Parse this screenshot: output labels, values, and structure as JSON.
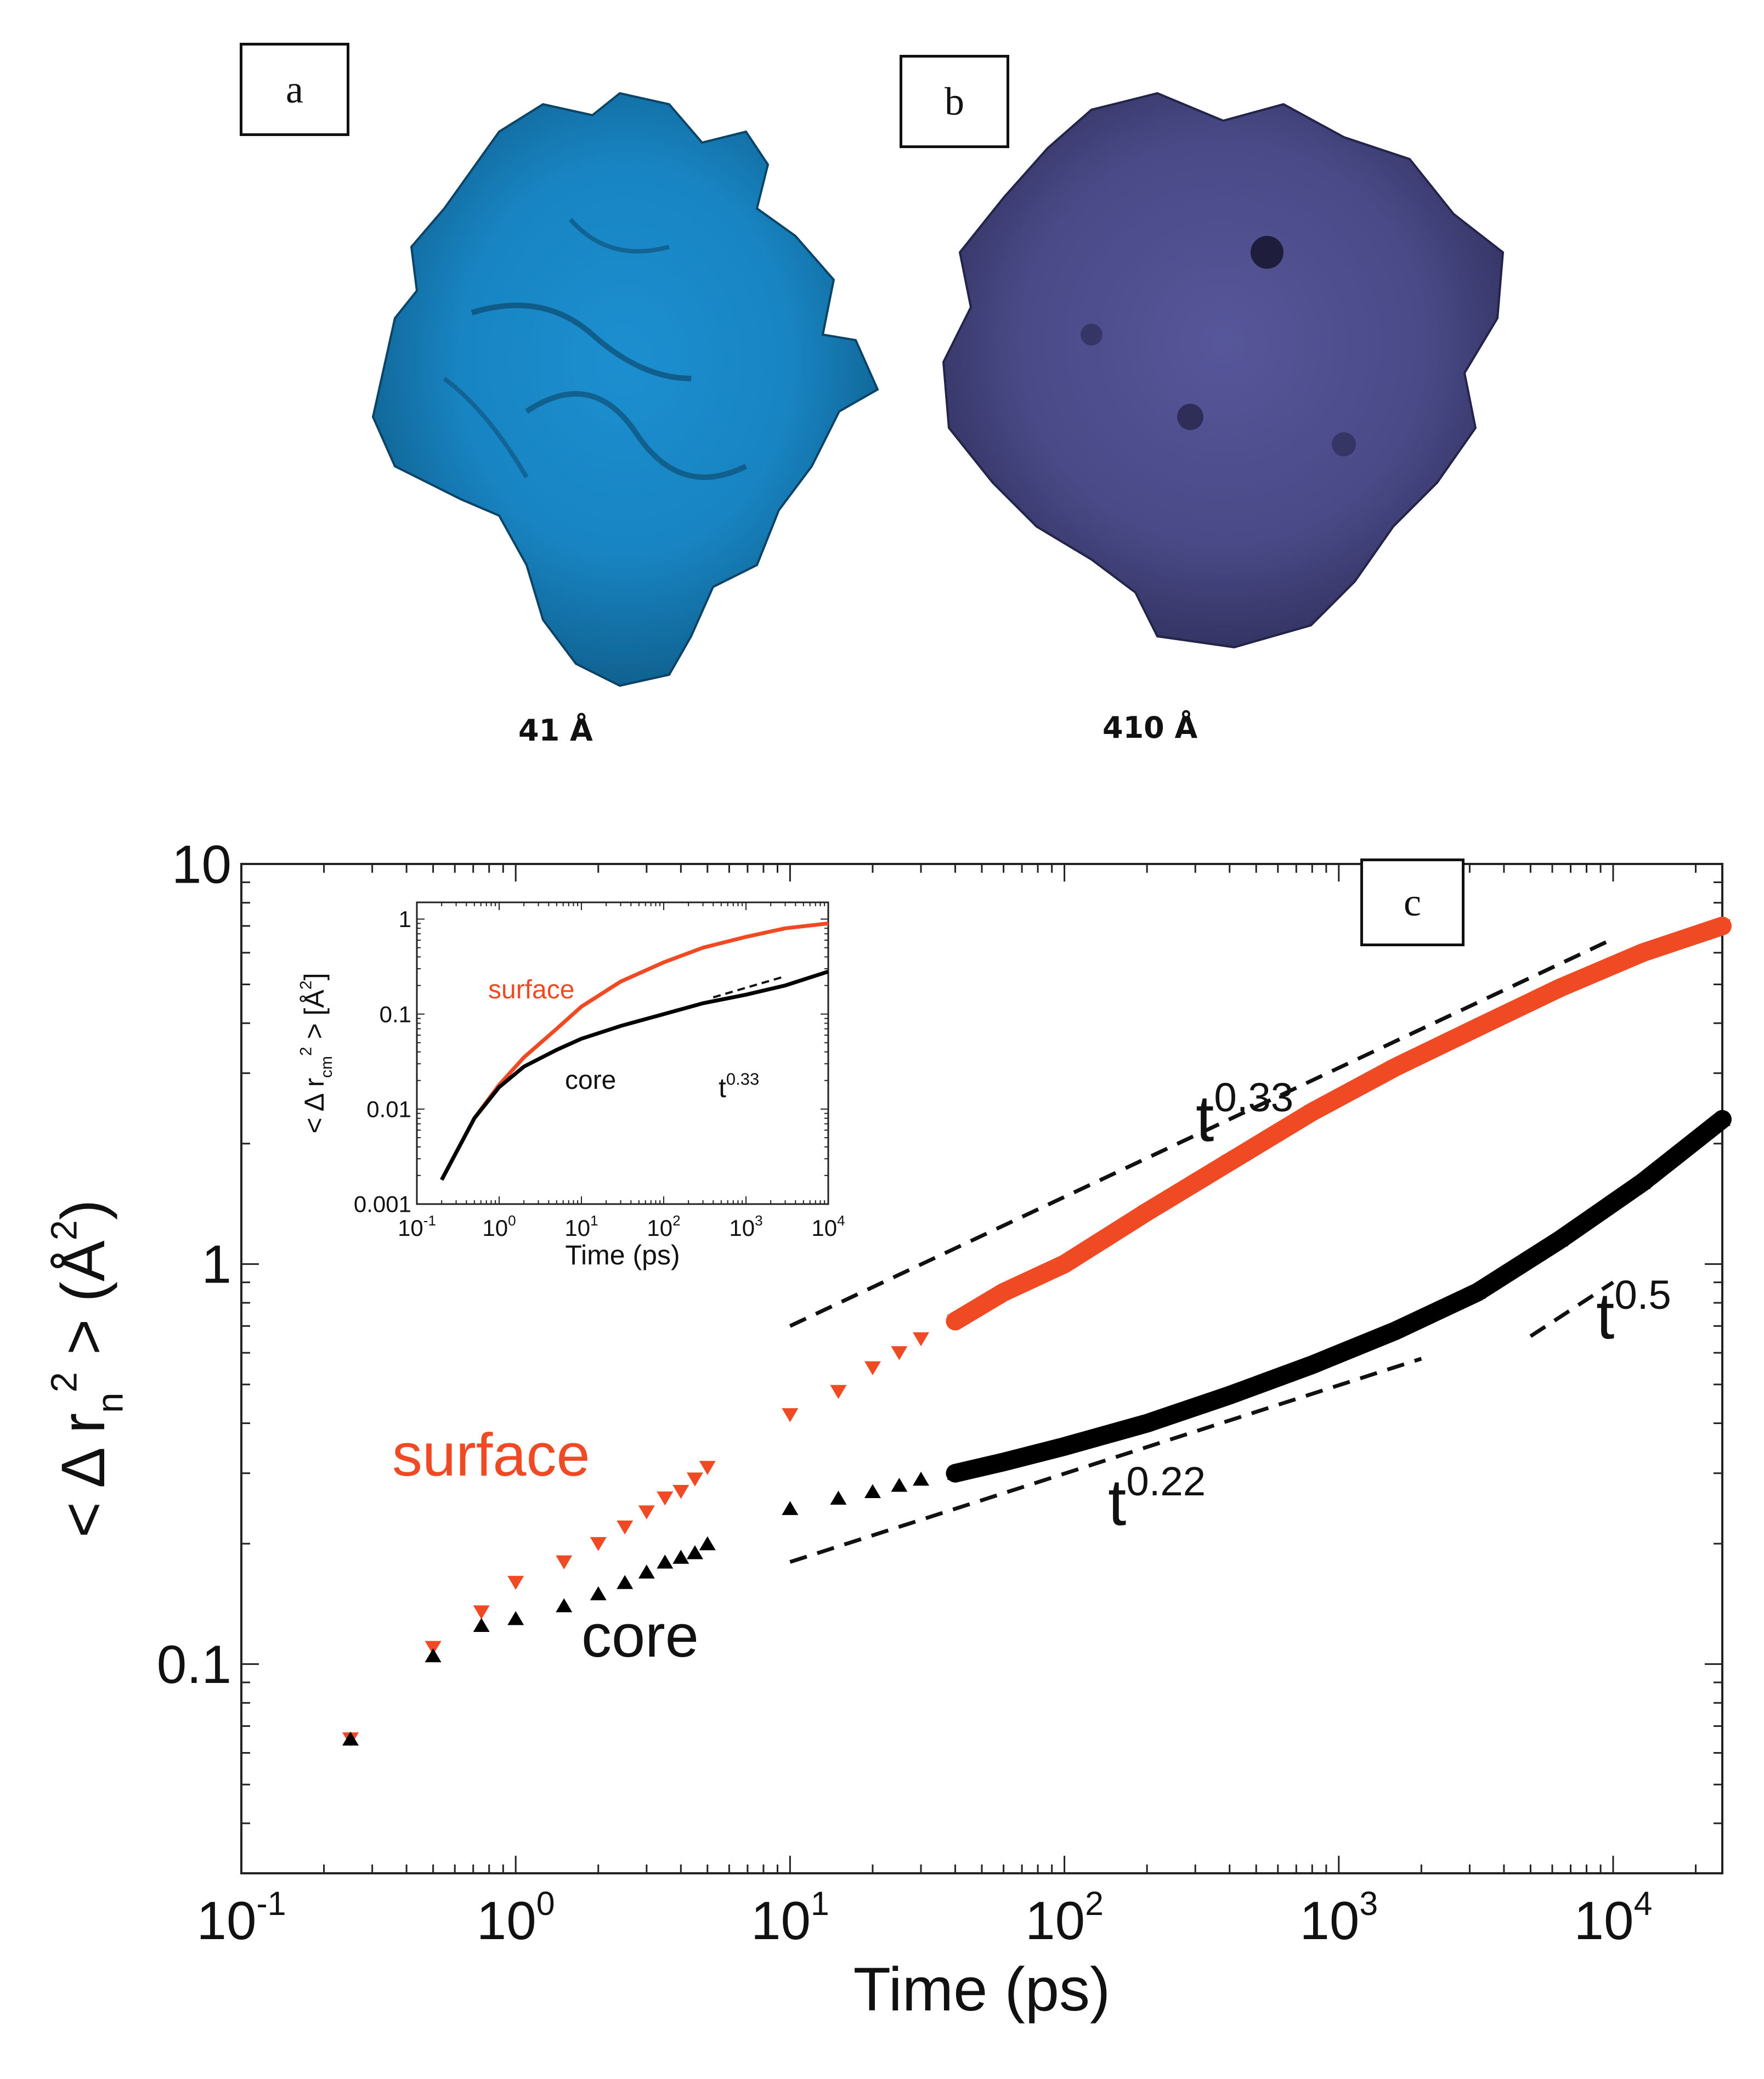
{
  "panels": {
    "a": {
      "label": "a",
      "caption": "41  Å",
      "surface_color": "#1c8fd0"
    },
    "b": {
      "label": "b",
      "caption": "410  Å",
      "surface_color": "#4a4a88"
    },
    "c": {
      "label": "c"
    }
  },
  "chart_data": [
    {
      "type": "scatter",
      "name": "main",
      "xscale": "log",
      "yscale": "log",
      "xlim": [
        0.1,
        25000
      ],
      "ylim": [
        0.03,
        10
      ],
      "xlabel": "Time  (ps)",
      "ylabel": "< Δ r_n^2 > (Å^2)",
      "xticks": [
        {
          "v": 0.1,
          "b": "10",
          "e": "-1"
        },
        {
          "v": 1,
          "b": "10",
          "e": "0"
        },
        {
          "v": 10,
          "b": "10",
          "e": "1"
        },
        {
          "v": 100,
          "b": "10",
          "e": "2"
        },
        {
          "v": 1000,
          "b": "10",
          "e": "3"
        },
        {
          "v": 10000,
          "b": "10",
          "e": "4"
        }
      ],
      "yticks": [
        {
          "v": 0.1,
          "label": "0.1"
        },
        {
          "v": 1,
          "label": "1"
        },
        {
          "v": 10,
          "label": "10"
        }
      ],
      "series": [
        {
          "name": "surface",
          "color": "#f04a24",
          "marker": "triangle-down",
          "x": [
            0.25,
            0.5,
            0.75,
            1.0,
            1.5,
            2,
            2.5,
            3,
            3.5,
            4,
            4.5,
            5,
            10,
            15,
            20,
            25,
            30,
            40,
            60,
            100,
            200,
            400,
            800,
            1600,
            3200,
            6400,
            12800,
            25000
          ],
          "y": [
            0.065,
            0.11,
            0.135,
            0.16,
            0.18,
            0.2,
            0.22,
            0.24,
            0.26,
            0.27,
            0.29,
            0.31,
            0.42,
            0.48,
            0.55,
            0.6,
            0.65,
            0.72,
            0.85,
            1.0,
            1.35,
            1.8,
            2.4,
            3.1,
            3.9,
            4.9,
            6.0,
            7.0
          ]
        },
        {
          "name": "core",
          "color": "#000000",
          "marker": "triangle-up",
          "x": [
            0.25,
            0.5,
            0.75,
            1.0,
            1.5,
            2,
            2.5,
            3,
            3.5,
            4,
            4.5,
            5,
            10,
            15,
            20,
            25,
            30,
            40,
            60,
            100,
            200,
            400,
            800,
            1600,
            3200,
            6400,
            12800,
            25000
          ],
          "y": [
            0.065,
            0.105,
            0.125,
            0.13,
            0.14,
            0.15,
            0.16,
            0.17,
            0.18,
            0.185,
            0.19,
            0.2,
            0.245,
            0.26,
            0.27,
            0.28,
            0.29,
            0.3,
            0.32,
            0.35,
            0.4,
            0.47,
            0.56,
            0.68,
            0.85,
            1.15,
            1.6,
            2.3
          ]
        }
      ],
      "guides": [
        {
          "label_base": "t",
          "label_exp": "0.33",
          "x": [
            10,
            10000
          ],
          "y": [
            0.7,
            6.5
          ]
        },
        {
          "label_base": "t",
          "label_exp": "0.22",
          "x": [
            10,
            2000
          ],
          "y": [
            0.18,
            0.58
          ]
        },
        {
          "label_base": "t",
          "label_exp": "0.5",
          "x": [
            5000,
            10000
          ],
          "y": [
            0.66,
            0.9
          ]
        }
      ],
      "annotations": {
        "surface": "surface",
        "core": "core"
      }
    },
    {
      "type": "line",
      "name": "inset",
      "xscale": "log",
      "yscale": "log",
      "xlim": [
        0.1,
        10000
      ],
      "ylim": [
        0.001,
        1.5
      ],
      "xlabel": "Time  (ps)",
      "ylabel": "< Δ r_cm^2 > [Å^2]",
      "xticks": [
        {
          "v": 0.1,
          "b": "10",
          "e": "-1"
        },
        {
          "v": 1,
          "b": "10",
          "e": "0"
        },
        {
          "v": 10,
          "b": "10",
          "e": "1"
        },
        {
          "v": 100,
          "b": "10",
          "e": "2"
        },
        {
          "v": 1000,
          "b": "10",
          "e": "3"
        },
        {
          "v": 10000,
          "b": "10",
          "e": "4"
        }
      ],
      "yticks": [
        {
          "v": 0.001,
          "label": "0.001"
        },
        {
          "v": 0.01,
          "label": "0.01"
        },
        {
          "v": 0.1,
          "label": "0.1"
        },
        {
          "v": 1,
          "label": "1"
        }
      ],
      "series": [
        {
          "name": "surface",
          "color": "#f04a24",
          "x": [
            0.2,
            0.5,
            1,
            2,
            5,
            10,
            30,
            100,
            300,
            1000,
            3000,
            10000
          ],
          "y": [
            0.0018,
            0.008,
            0.018,
            0.035,
            0.07,
            0.12,
            0.22,
            0.35,
            0.5,
            0.65,
            0.8,
            0.9
          ]
        },
        {
          "name": "core",
          "color": "#000000",
          "x": [
            0.2,
            0.5,
            1,
            2,
            5,
            10,
            30,
            100,
            300,
            1000,
            3000,
            10000
          ],
          "y": [
            0.0018,
            0.008,
            0.017,
            0.028,
            0.042,
            0.055,
            0.075,
            0.1,
            0.13,
            0.16,
            0.2,
            0.28
          ]
        }
      ],
      "guides": [
        {
          "label_base": "t",
          "label_exp": "0.33",
          "x": [
            400,
            3000
          ],
          "y": [
            0.15,
            0.25
          ]
        }
      ],
      "annotations": {
        "surface": "surface",
        "core": "core"
      }
    }
  ]
}
